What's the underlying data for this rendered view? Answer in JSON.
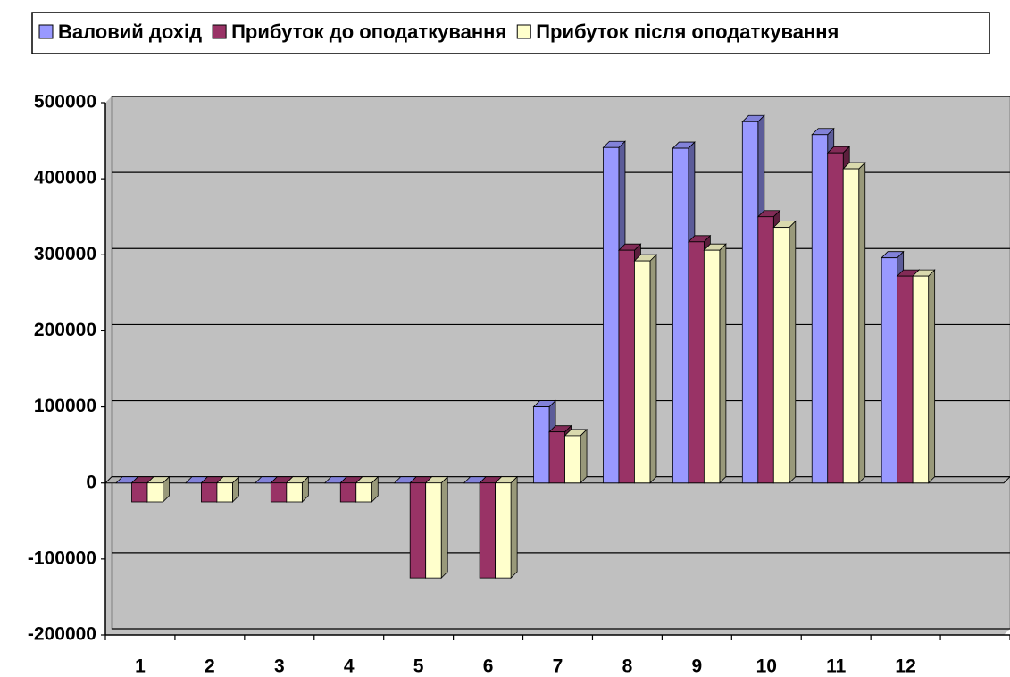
{
  "chart_data": {
    "type": "bar3d",
    "categories": [
      "1",
      "2",
      "3",
      "4",
      "5",
      "6",
      "7",
      "8",
      "9",
      "10",
      "11",
      "12",
      null
    ],
    "series": [
      {
        "name": "Валовий дохід",
        "color": "#9999ff",
        "values": [
          0,
          0,
          0,
          0,
          0,
          0,
          100000,
          441000,
          440000,
          475000,
          458000,
          296000,
          null
        ]
      },
      {
        "name": "Прибуток до оподаткування",
        "color": "#993366",
        "values": [
          -25000,
          -25000,
          -25000,
          -25000,
          -125000,
          -125000,
          67000,
          306000,
          317000,
          350000,
          434000,
          272000,
          null
        ]
      },
      {
        "name": "Прибуток після оподаткування",
        "color": "#ffffcc",
        "values": [
          -25000,
          -25000,
          -25000,
          -25000,
          -125000,
          -125000,
          62000,
          292000,
          306000,
          336000,
          413000,
          272000,
          null
        ]
      }
    ],
    "ylim": [
      -200000,
      500000
    ],
    "yticks": [
      -200000,
      -100000,
      0,
      100000,
      200000,
      300000,
      400000,
      500000
    ],
    "grid": true,
    "legend": "top"
  }
}
